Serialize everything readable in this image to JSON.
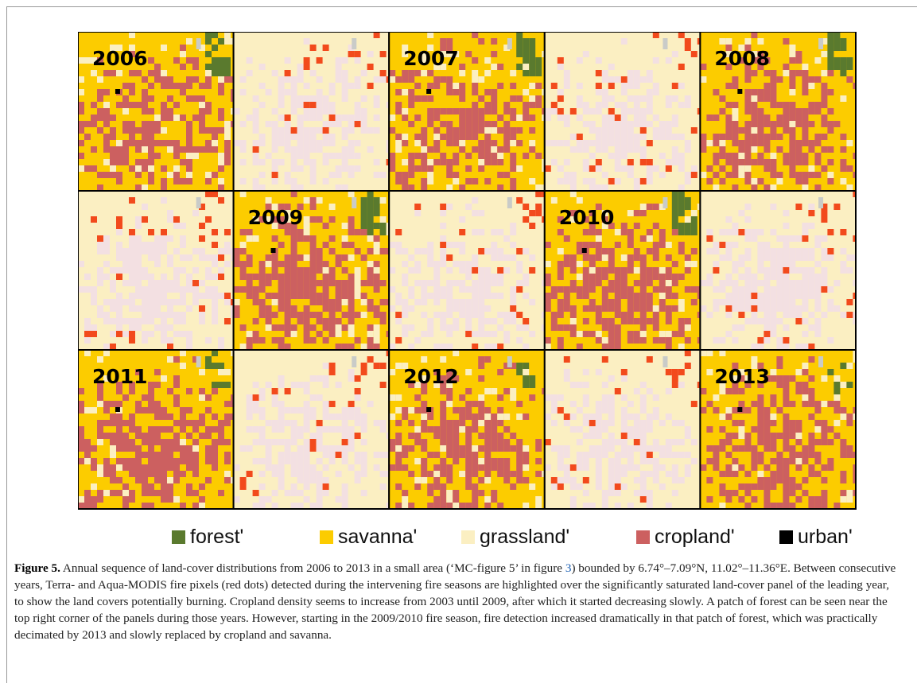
{
  "panels": {
    "years": [
      "2006",
      "2007",
      "2008",
      "2009",
      "2010",
      "2011",
      "2012",
      "2013"
    ]
  },
  "legend": [
    "forest'",
    "savanna'",
    "grassland'",
    "cropland'",
    "urban'"
  ],
  "caption": {
    "label": "Figure 5.",
    "text_before": "Annual sequence of land-cover distributions from 2006 to 2013 in a small area (‘MC-figure 5’ in figure ",
    "link": "3",
    "text_after": ") bounded by 6.74°–7.09°N, 11.02°–11.36°E. Between consecutive years, Terra- and Aqua-MODIS fire pixels (red dots) detected during the intervening fire seasons are highlighted over the significantly saturated land-cover panel of the leading year, to show the land covers potentially burning. Cropland density seems to increase from 2003 until 2009, after which it started decreasing slowly. A patch of forest can be seen near the top right corner of the panels during those years. However, starting in the 2009/2010 fire season, fire detection increased dramatically in that patch of forest, which was practically decimated by 2013 and slowly replaced by cropland and savanna."
  }
}
